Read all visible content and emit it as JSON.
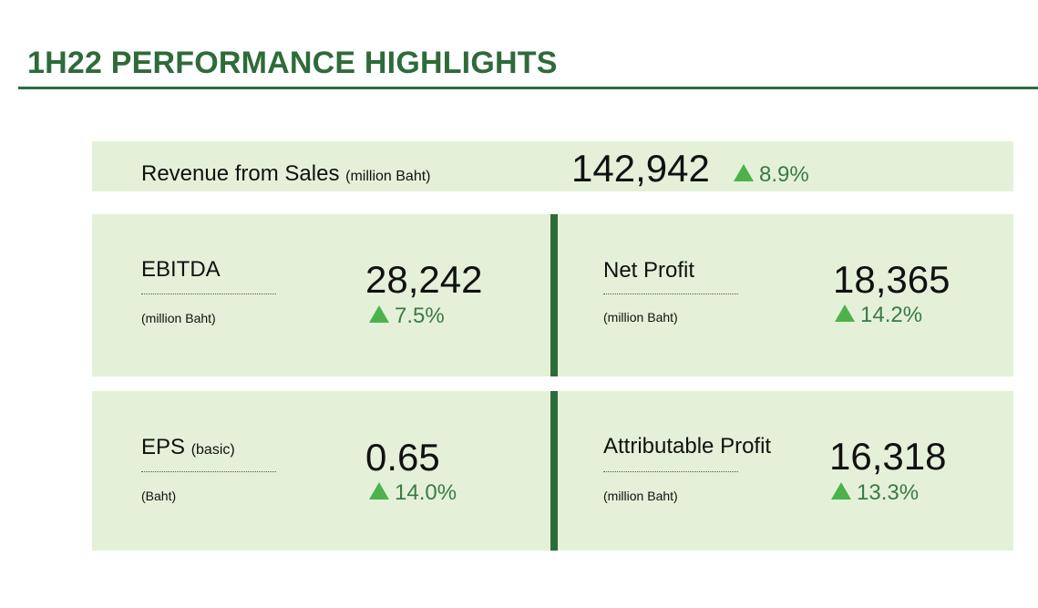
{
  "title": "1H22 PERFORMANCE HIGHLIGHTS",
  "colors": {
    "accent": "#2e6b3a",
    "panel": "#e4f1d8",
    "up": "#4db24b"
  },
  "revenue": {
    "label": "Revenue from Sales",
    "unit": "(million Baht)",
    "value": "142,942",
    "change": "8.9%",
    "trend_icon": "triangle-up-icon"
  },
  "ebitda": {
    "label": "EBITDA",
    "unit": "(million Baht)",
    "value": "28,242",
    "change": "7.5%"
  },
  "net_profit": {
    "label": "Net Profit",
    "unit": "(million Baht)",
    "value": "18,365",
    "change": "14.2%"
  },
  "eps": {
    "label": "EPS",
    "qualifier": "(basic)",
    "unit": "(Baht)",
    "value": "0.65",
    "change": "14.0%"
  },
  "attributable_profit": {
    "label": "Attributable Profit",
    "unit": "(million Baht)",
    "value": "16,318",
    "change": "13.3%"
  }
}
